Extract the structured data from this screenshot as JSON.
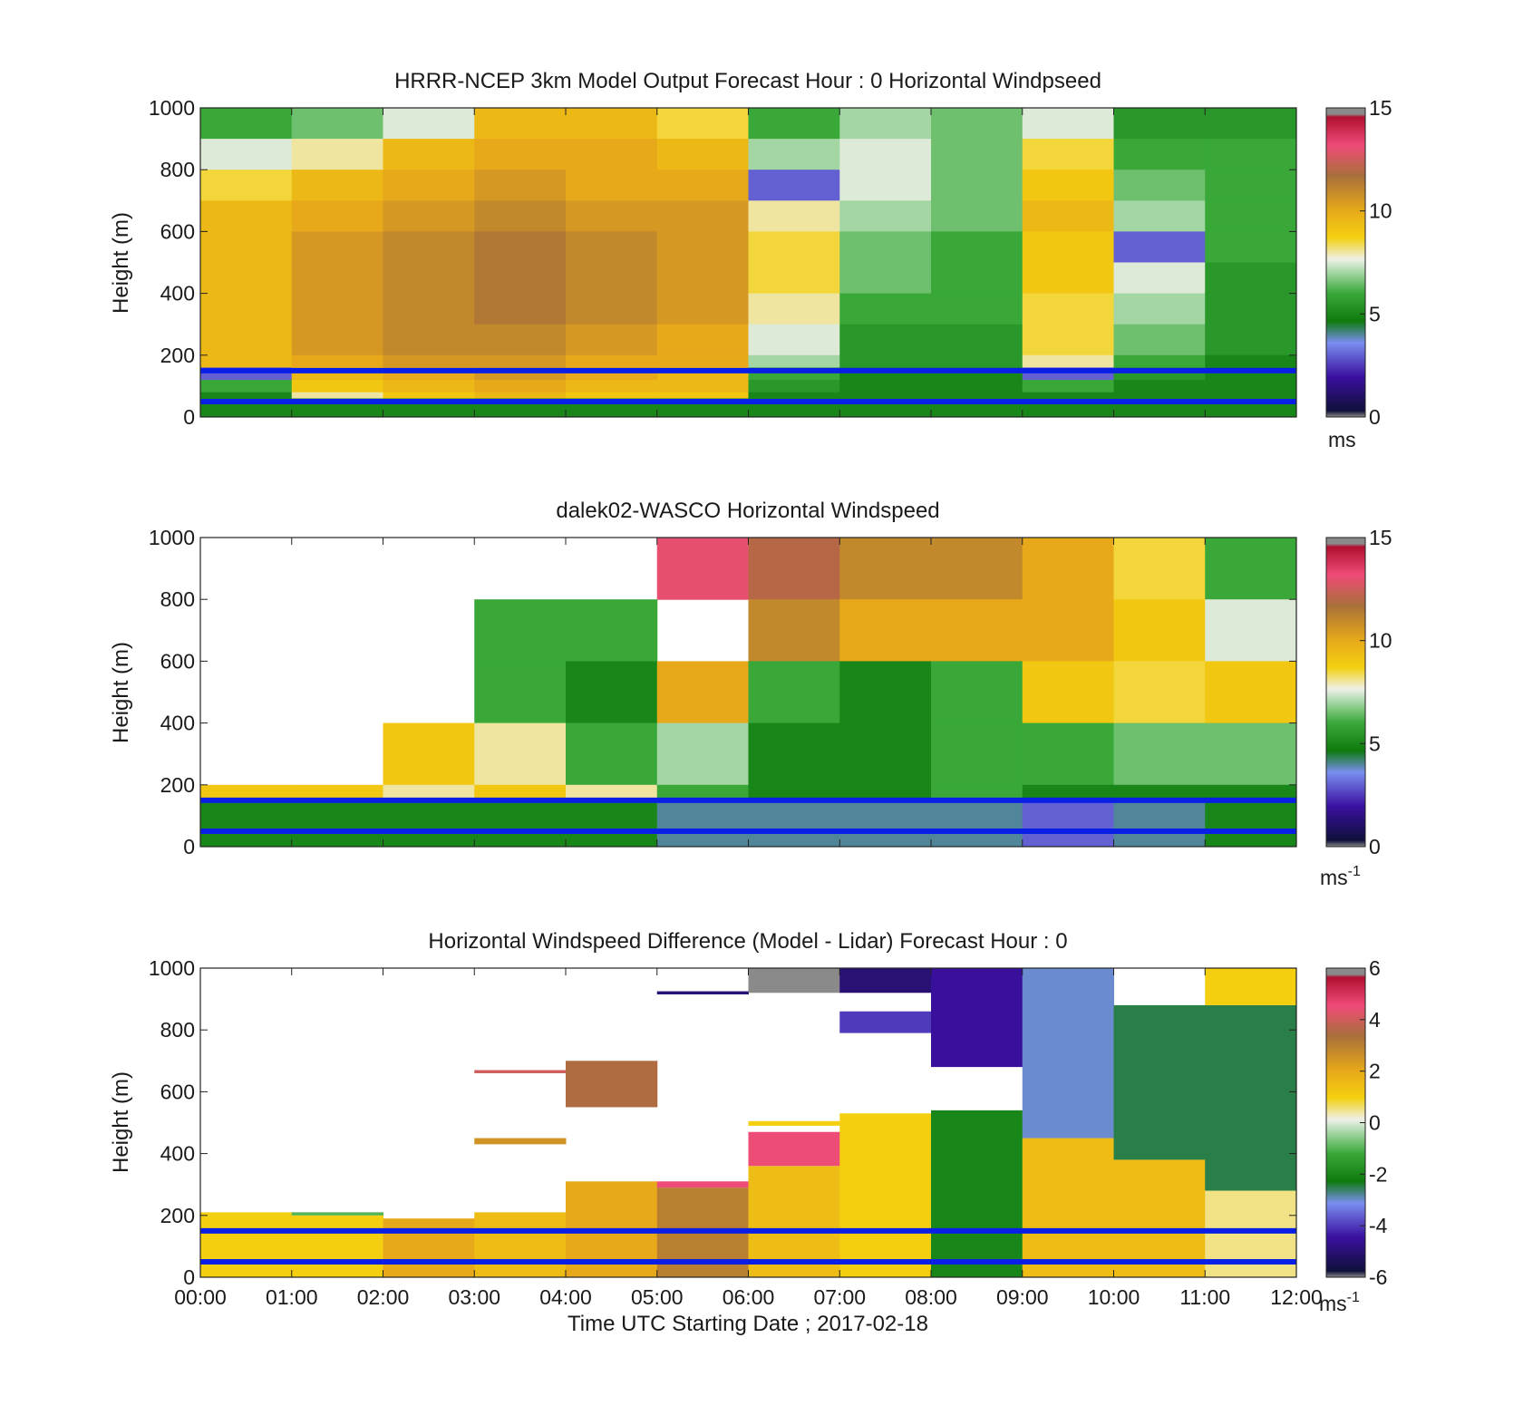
{
  "figure": {
    "xlabel": "Time UTC  Starting Date ; 2017-02-18",
    "x_tick_labels": [
      "00:00",
      "01:00",
      "02:00",
      "03:00",
      "04:00",
      "05:00",
      "06:00",
      "07:00",
      "08:00",
      "09:00",
      "10:00",
      "11:00",
      "12:00"
    ]
  },
  "chart_data": [
    {
      "type": "heatmap",
      "title": "HRRR-NCEP 3km Model Output   Forecast Hour : 0 Horizontal Windpseed",
      "ylabel": "Height (m)",
      "x_range_hours": [
        0,
        12
      ],
      "ylim": [
        0,
        1000
      ],
      "y_ticks": [
        0,
        200,
        400,
        600,
        800,
        1000
      ],
      "colorbar": {
        "range": [
          0,
          15
        ],
        "ticks": [
          0,
          5,
          10,
          15
        ],
        "unit": "ms"
      },
      "reference_lines_m": [
        50,
        150
      ],
      "line_color": "#0a1fe6",
      "layers_m": [
        1000,
        900,
        800,
        700,
        600,
        500,
        400,
        300,
        200,
        160,
        120,
        80,
        60,
        40,
        20,
        0
      ],
      "columns": [
        {
          "start_hour": 0,
          "values": [
            6,
            7.5,
            8.5,
            9.5,
            9.5,
            9.5,
            9.5,
            9.5,
            9.5,
            3,
            6,
            5,
            5,
            5,
            5
          ]
        },
        {
          "start_hour": 1,
          "values": [
            6.5,
            8,
            9.5,
            10,
            10.5,
            10.5,
            10.5,
            10.5,
            10,
            9.5,
            9,
            8,
            5,
            5,
            5
          ]
        },
        {
          "start_hour": 2,
          "values": [
            7.5,
            9.5,
            10,
            10.5,
            11,
            11,
            11,
            11,
            10.5,
            10,
            9.5,
            9,
            5,
            5,
            5
          ]
        },
        {
          "start_hour": 3,
          "values": [
            9.5,
            10,
            10.5,
            11,
            11.5,
            11.5,
            11.5,
            11,
            10.5,
            10.5,
            10,
            9.5,
            5,
            5,
            5
          ]
        },
        {
          "start_hour": 4,
          "values": [
            9.5,
            10,
            10,
            10.5,
            11,
            11,
            11,
            10.5,
            10,
            10,
            9.5,
            9,
            5,
            5,
            5
          ]
        },
        {
          "start_hour": 5,
          "values": [
            8.5,
            9.5,
            10,
            10.5,
            10.5,
            10.5,
            10.5,
            10,
            10,
            9.5,
            9.5,
            9,
            5,
            5,
            5
          ]
        },
        {
          "start_hour": 6,
          "values": [
            6,
            7,
            3,
            8,
            8.5,
            8.5,
            8,
            7.5,
            7,
            6,
            5.5,
            5,
            5,
            5,
            5
          ]
        },
        {
          "start_hour": 7,
          "values": [
            7,
            7.5,
            7.5,
            7,
            6.5,
            6.5,
            6,
            5.5,
            5.5,
            5,
            5,
            5,
            5,
            5,
            5
          ]
        },
        {
          "start_hour": 8,
          "values": [
            6.5,
            6.5,
            6.5,
            6.5,
            6,
            6,
            6,
            5.5,
            5.5,
            5,
            5,
            5,
            5,
            5,
            5
          ]
        },
        {
          "start_hour": 9,
          "values": [
            7.5,
            8.5,
            9,
            9.5,
            9,
            9,
            8.5,
            8.5,
            8,
            3,
            6,
            5,
            5,
            5,
            5
          ]
        },
        {
          "start_hour": 10,
          "values": [
            5.5,
            6,
            6.5,
            7,
            3,
            7.5,
            7,
            6.5,
            6,
            5.5,
            5,
            5,
            5,
            5,
            5
          ]
        },
        {
          "start_hour": 11,
          "values": [
            5.5,
            6,
            6,
            6,
            6,
            5.5,
            5.5,
            5.5,
            5,
            5,
            5,
            5,
            5,
            5,
            5
          ]
        }
      ]
    },
    {
      "type": "heatmap",
      "title": "dalek02-WASCO  Horizontal Windspeed",
      "ylabel": "Height (m)",
      "x_range_hours": [
        0,
        12
      ],
      "ylim": [
        0,
        1000
      ],
      "y_ticks": [
        0,
        200,
        400,
        600,
        800,
        1000
      ],
      "colorbar": {
        "range": [
          0,
          15
        ],
        "ticks": [
          0,
          5,
          10,
          15
        ],
        "unit": "ms",
        "unit_exponent": "-1"
      },
      "reference_lines_m": [
        50,
        150
      ],
      "line_color": "#0a1fe6",
      "layers_m": [
        1000,
        800,
        600,
        400,
        200,
        150,
        0
      ],
      "columns": [
        {
          "start_hour": 0,
          "values": [
            null,
            null,
            null,
            null,
            9,
            5
          ]
        },
        {
          "start_hour": 1,
          "values": [
            null,
            null,
            null,
            null,
            9,
            5
          ]
        },
        {
          "start_hour": 2,
          "values": [
            null,
            null,
            null,
            9,
            8,
            5
          ]
        },
        {
          "start_hour": 3,
          "values": [
            null,
            6,
            6,
            8,
            9,
            5
          ]
        },
        {
          "start_hour": 4,
          "values": [
            null,
            6,
            5,
            6,
            8,
            5
          ]
        },
        {
          "start_hour": 5,
          "values": [
            13,
            null,
            10,
            7,
            6,
            4
          ]
        },
        {
          "start_hour": 6,
          "values": [
            12,
            11,
            6,
            5,
            5,
            4
          ]
        },
        {
          "start_hour": 7,
          "values": [
            11,
            10,
            5,
            5,
            5,
            4
          ]
        },
        {
          "start_hour": 8,
          "values": [
            11,
            10,
            6,
            6,
            6,
            4
          ]
        },
        {
          "start_hour": 9,
          "values": [
            10,
            10,
            9,
            6,
            5,
            3
          ]
        },
        {
          "start_hour": 10,
          "values": [
            8.5,
            9,
            8.5,
            6.5,
            5,
            4
          ]
        },
        {
          "start_hour": 11,
          "values": [
            6,
            7.5,
            9,
            6.5,
            5,
            5
          ]
        }
      ]
    },
    {
      "type": "heatmap",
      "title": "Horizontal Windspeed Difference (Model - Lidar) Forecast Hour : 0",
      "ylabel": "Height (m)",
      "x_range_hours": [
        0,
        12
      ],
      "ylim": [
        0,
        1000
      ],
      "y_ticks": [
        0,
        200,
        400,
        600,
        800,
        1000
      ],
      "colorbar": {
        "range": [
          -6,
          6
        ],
        "ticks": [
          -6,
          -4,
          -2,
          0,
          2,
          4,
          6
        ],
        "unit": "ms",
        "unit_exponent": "-1"
      },
      "reference_lines_m": [
        50,
        150
      ],
      "line_color": "#0a1fe6",
      "columns": [
        {
          "start_hour": 0,
          "bands": [
            [
              0,
              210,
              1
            ]
          ]
        },
        {
          "start_hour": 1,
          "bands": [
            [
              0,
              200,
              1
            ],
            [
              200,
              210,
              -1
            ]
          ]
        },
        {
          "start_hour": 2,
          "bands": [
            [
              0,
              190,
              2
            ]
          ]
        },
        {
          "start_hour": 3,
          "bands": [
            [
              0,
              210,
              1.5
            ],
            [
              430,
              450,
              2.5
            ],
            [
              660,
              670,
              4
            ]
          ]
        },
        {
          "start_hour": 4,
          "bands": [
            [
              0,
              310,
              2
            ],
            [
              550,
              700,
              3.5
            ]
          ]
        },
        {
          "start_hour": 5,
          "bands": [
            [
              0,
              290,
              3
            ],
            [
              290,
              310,
              4.5
            ],
            [
              915,
              925,
              -5
            ]
          ]
        },
        {
          "start_hour": 6,
          "bands": [
            [
              0,
              360,
              1.5
            ],
            [
              360,
              470,
              4.5
            ],
            [
              490,
              505,
              1
            ],
            [
              920,
              1000,
              -7
            ]
          ]
        },
        {
          "start_hour": 7,
          "bands": [
            [
              0,
              530,
              1
            ],
            [
              790,
              860,
              -4
            ],
            [
              920,
              1000,
              -5
            ]
          ]
        },
        {
          "start_hour": 8,
          "bands": [
            [
              0,
              540,
              -2
            ],
            [
              680,
              1000,
              -4.5
            ]
          ]
        },
        {
          "start_hour": 9,
          "bands": [
            [
              0,
              450,
              1.5
            ],
            [
              450,
              1000,
              -3
            ]
          ]
        },
        {
          "start_hour": 10,
          "bands": [
            [
              0,
              380,
              1.5
            ],
            [
              380,
              880,
              -2.5
            ]
          ]
        },
        {
          "start_hour": 11,
          "bands": [
            [
              0,
              280,
              0.5
            ],
            [
              280,
              880,
              -2.5
            ],
            [
              880,
              1000,
              1
            ]
          ]
        }
      ]
    }
  ]
}
